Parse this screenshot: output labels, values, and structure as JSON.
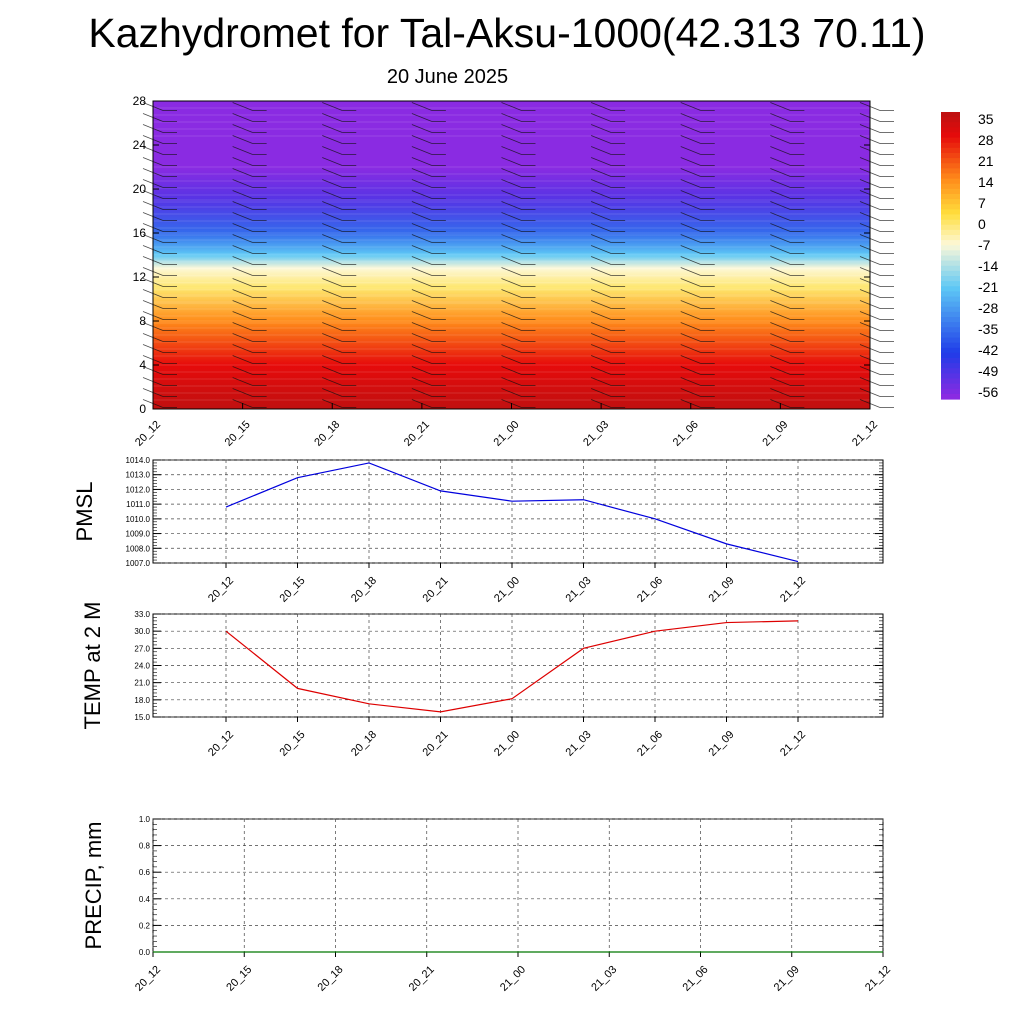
{
  "title": "Kazhydromet for Tal-Aksu-1000(42.313 70.11)",
  "subtitle": "20 June 2025",
  "chart_data": [
    {
      "type": "heatmap",
      "name": "temperature-height cross section",
      "x_ticks": [
        "20_12",
        "20_15",
        "20_18",
        "20_21",
        "21_00",
        "21_03",
        "21_06",
        "21_09",
        "21_12"
      ],
      "y_ticks": [
        0,
        4,
        8,
        12,
        16,
        20,
        24,
        28
      ],
      "ylim": [
        0,
        28
      ],
      "colorbar_ticks": [
        35,
        28,
        21,
        14,
        7,
        0,
        -7,
        -14,
        -21,
        -28,
        -35,
        -42,
        -49,
        -56
      ],
      "colors": {
        "top_violet": "#8a2be2",
        "blue": "#1f3ce8",
        "light_blue": "#5ec8f5",
        "pale": "#fdf8d8",
        "yellow": "#ffde3c",
        "orange": "#ff8c1a",
        "red": "#e60b0b",
        "dark_red": "#c01010"
      },
      "profile": [
        {
          "height": 0,
          "value": 35
        },
        {
          "height": 4,
          "value": 28
        },
        {
          "height": 8,
          "value": 14
        },
        {
          "height": 11,
          "value": 0
        },
        {
          "height": 12.8,
          "value": -7
        },
        {
          "height": 14,
          "value": -21
        },
        {
          "height": 16,
          "value": -35
        },
        {
          "height": 19,
          "value": -49
        },
        {
          "height": 22,
          "value": -56
        },
        {
          "height": 28,
          "value": -56
        }
      ]
    },
    {
      "type": "line",
      "ylabel": "PMSL",
      "categories": [
        "20_12",
        "20_15",
        "20_18",
        "20_21",
        "21_00",
        "21_03",
        "21_06",
        "21_09",
        "21_12"
      ],
      "values": [
        1010.8,
        1012.8,
        1013.8,
        1011.9,
        1011.2,
        1011.3,
        1010.0,
        1008.3,
        1007.1
      ],
      "ylim": [
        1007.0,
        1014.0
      ],
      "y_ticks": [
        "1007.0",
        "1008.0",
        "1009.0",
        "1010.0",
        "1011.0",
        "1012.0",
        "1013.0",
        "1014.0"
      ],
      "color": "#0000dd",
      "grid": true
    },
    {
      "type": "line",
      "ylabel": "TEMP at 2 M",
      "categories": [
        "20_12",
        "20_15",
        "20_18",
        "20_21",
        "21_00",
        "21_03",
        "21_06",
        "21_09",
        "21_12"
      ],
      "values": [
        30.0,
        20.0,
        17.3,
        15.9,
        18.2,
        27.0,
        30.0,
        31.5,
        31.8
      ],
      "ylim": [
        15.0,
        33.0
      ],
      "y_ticks": [
        "15.0",
        "18.0",
        "21.0",
        "24.0",
        "27.0",
        "30.0",
        "33.0"
      ],
      "color": "#dd0000",
      "grid": true
    },
    {
      "type": "line",
      "ylabel": "PRECIP, mm",
      "categories": [
        "20_12",
        "20_15",
        "20_18",
        "20_21",
        "21_00",
        "21_03",
        "21_06",
        "21_09",
        "21_12"
      ],
      "values": [
        0,
        0,
        0,
        0,
        0,
        0,
        0,
        0,
        0
      ],
      "ylim": [
        0.0,
        1.0
      ],
      "y_ticks": [
        "0.0",
        "0.2",
        "0.4",
        "0.6",
        "0.8",
        "1.0"
      ],
      "color": "#007700",
      "grid": true
    }
  ]
}
